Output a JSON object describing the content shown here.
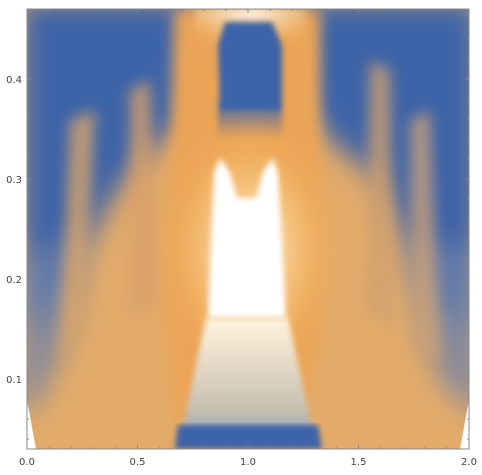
{
  "chart_data": {
    "type": "heatmap",
    "title": "",
    "xlabel": "",
    "ylabel": "",
    "xlim": [
      0.0,
      2.0
    ],
    "ylim": [
      0.03,
      0.47
    ],
    "x_ticks": [
      {
        "value": 0.0,
        "label": "0.0"
      },
      {
        "value": 0.5,
        "label": "0.5"
      },
      {
        "value": 1.0,
        "label": "1.0"
      },
      {
        "value": 1.5,
        "label": "1.5"
      },
      {
        "value": 2.0,
        "label": "2.0"
      }
    ],
    "y_ticks": [
      {
        "value": 0.1,
        "label": "0.1"
      },
      {
        "value": 0.2,
        "label": "0.2"
      },
      {
        "value": 0.3,
        "label": "0.3"
      },
      {
        "value": 0.4,
        "label": "0.4"
      }
    ],
    "colors": {
      "low": "#3d63a8",
      "mid": "#dcb892",
      "high": "#f2a94f",
      "peak": "#ffffff",
      "frame": "#888888"
    },
    "grid": false
  }
}
